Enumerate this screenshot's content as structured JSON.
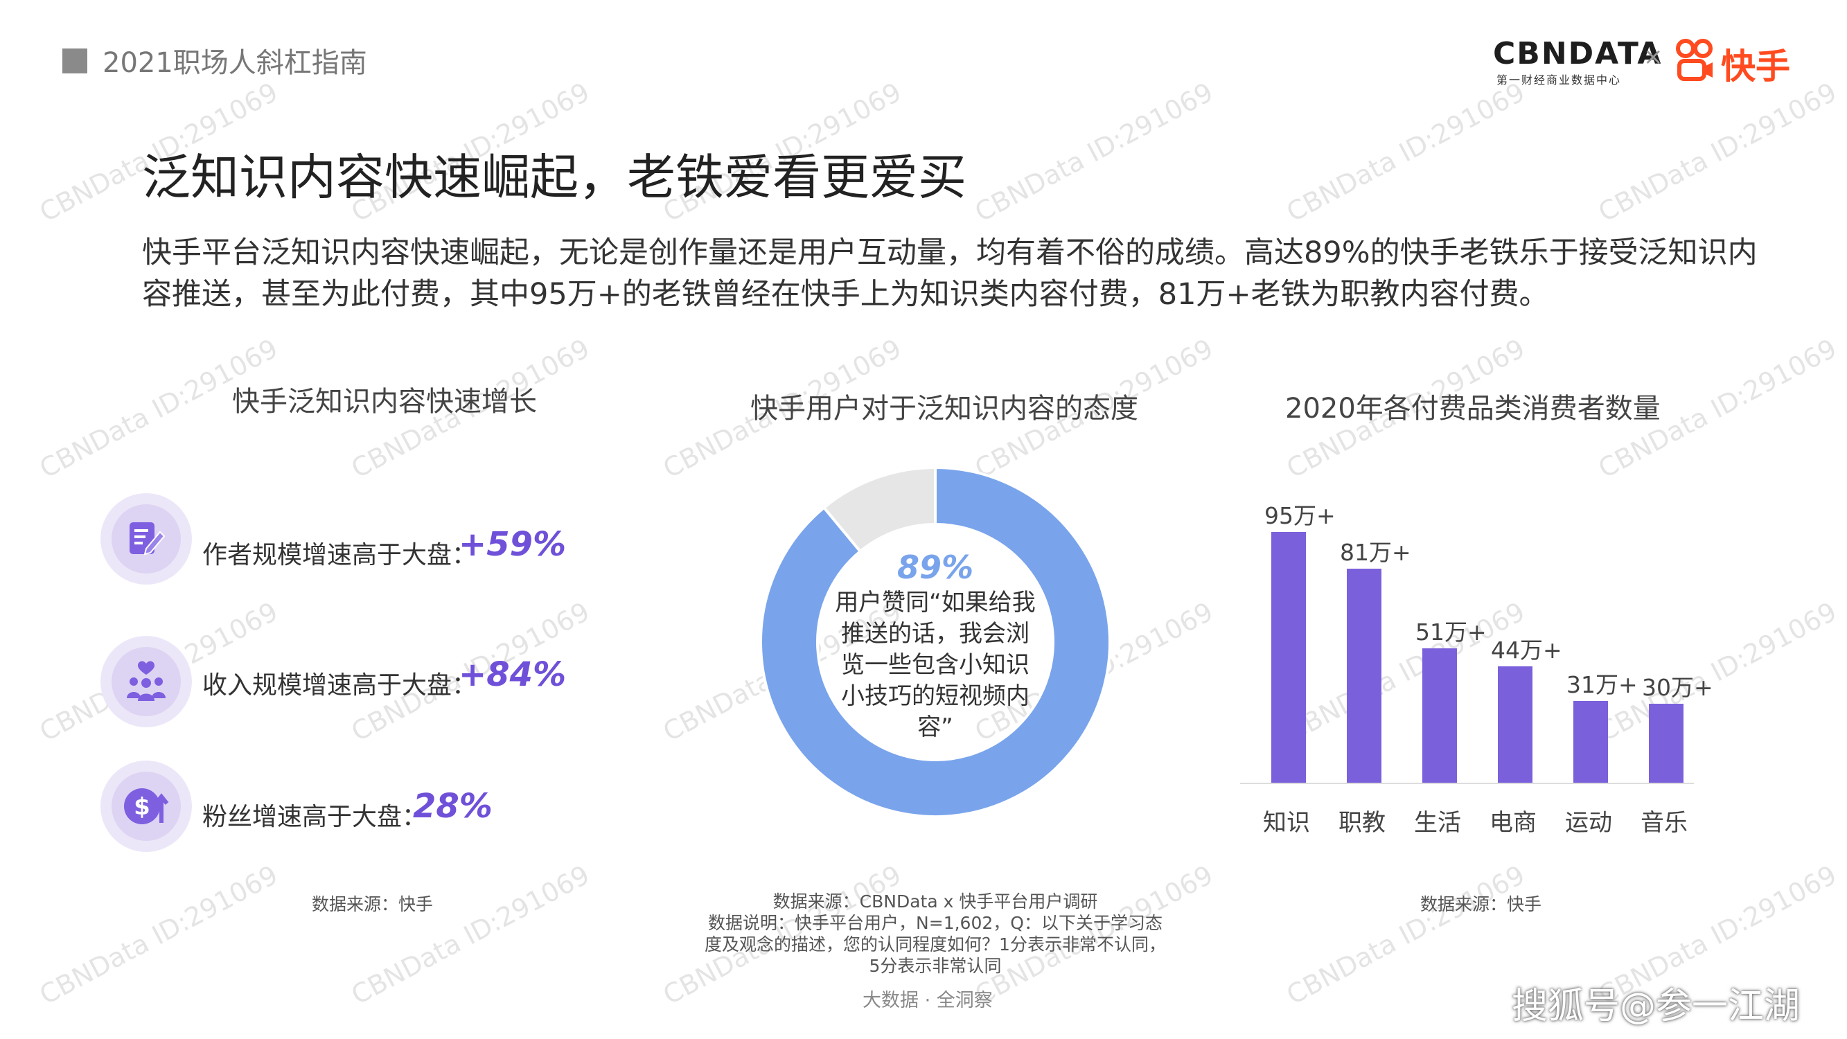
{
  "header": {
    "title": "2021职场人斜杠指南"
  },
  "brand": {
    "cbn": "CBNDATA",
    "cbn_sub": "第一财经商业数据中心",
    "times": "×",
    "kuaishou": "快手"
  },
  "main_title": "泛知识内容快速崛起，老铁爱看更爱买",
  "paragraph": "快手平台泛知识内容快速崛起，无论是创作量还是用户互动量，均有着不俗的成绩。高达89%的快手老铁乐于接受泛知识内容推送，甚至为此付费，其中95万+的老铁曾经在快手上为知识类内容付费，81万+老铁为职教内容付费。",
  "left": {
    "title": "快手泛知识内容快速增长",
    "stats": [
      {
        "icon": "edit-note-icon",
        "label": "作者规模增速高于大盘：",
        "value": "+59%"
      },
      {
        "icon": "people-heart-icon",
        "label": "收入规模增速高于大盘：",
        "value": "+84%"
      },
      {
        "icon": "dollar-up-icon",
        "label": "粉丝增速高于大盘：",
        "value": "28%"
      }
    ],
    "source": "数据来源：快手"
  },
  "middle": {
    "title": "快手用户对于泛知识内容的态度",
    "center_pct": "89%",
    "center_text": "用户赞同“如果给我推送的话，我会浏览一些包含小知识小技巧的短视频内容”",
    "source_lines": [
      "数据来源：CBNData x 快手平台用户调研",
      "数据说明：快手平台用户，N=1,602，Q：以下关于学习态",
      "度及观念的描述，您的认同程度如何？1分表示非常不认同，",
      "5分表示非常认同"
    ]
  },
  "right": {
    "title": "2020年各付费品类消费者数量",
    "source": "数据来源：快手"
  },
  "chart_data": [
    {
      "type": "pie",
      "title": "快手用户对于泛知识内容的态度",
      "labels": [
        "",
        ""
      ],
      "values": [
        89,
        11
      ],
      "colors": [
        "#79a4ec",
        "#e6e6e6"
      ],
      "donut": true
    },
    {
      "type": "bar",
      "title": "2020年各付费品类消费者数量",
      "categories": [
        "知识",
        "职教",
        "生活",
        "电商",
        "运动",
        "音乐"
      ],
      "values": [
        95,
        81,
        51,
        44,
        31,
        30
      ],
      "data_labels": [
        "95万+",
        "81万+",
        "51万+",
        "44万+",
        "31万+",
        "30万+"
      ],
      "ylim": [
        0,
        100
      ],
      "color": "#7b60dc",
      "grid": false
    }
  ],
  "footer": {
    "center": "大数据 · 全洞察",
    "right": "搜狐号@参一江湖"
  },
  "watermark": "CBNData ID:291069",
  "colors": {
    "accent": "#6f50d8",
    "donut": "#79a4ec",
    "bar": "#7b60dc",
    "kuaishou": "#ff4b1f"
  }
}
